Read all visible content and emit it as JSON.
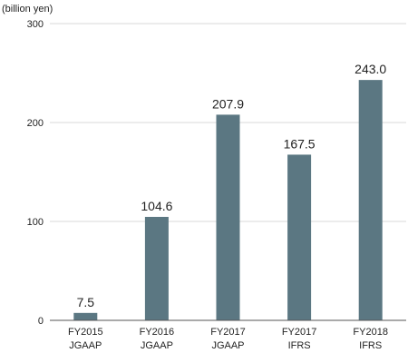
{
  "chart_data": {
    "type": "bar",
    "title": "",
    "unit_label": "(billion yen)",
    "xlabel": "",
    "ylabel": "",
    "ylim": [
      0,
      300
    ],
    "yticks": [
      0,
      100,
      200,
      300
    ],
    "categories": [
      {
        "line1": "FY2015",
        "line2": "JGAAP"
      },
      {
        "line1": "FY2016",
        "line2": "JGAAP"
      },
      {
        "line1": "FY2017",
        "line2": "JGAAP"
      },
      {
        "line1": "FY2017",
        "line2": "IFRS"
      },
      {
        "line1": "FY2018",
        "line2": "IFRS"
      }
    ],
    "values": [
      7.5,
      104.6,
      207.9,
      167.5,
      243.0
    ],
    "data_labels": [
      "7.5",
      "104.6",
      "207.9",
      "167.5",
      "243.0"
    ],
    "grid": true,
    "bar_color": "#5b7782",
    "grid_color": "#d9d9d9",
    "axis_color": "#555555"
  }
}
